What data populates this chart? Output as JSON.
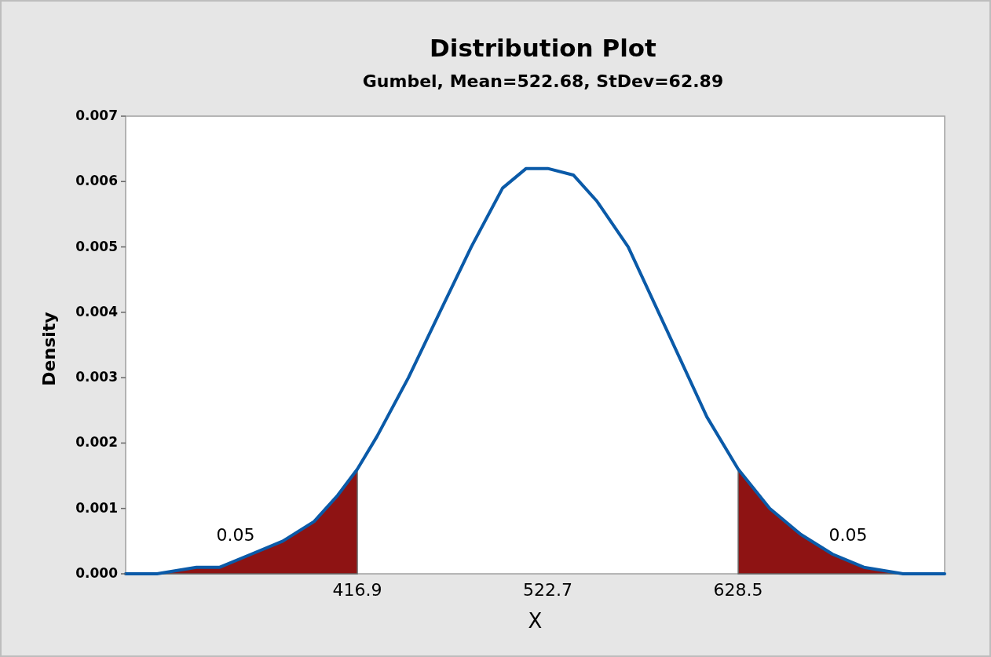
{
  "chart_data": {
    "type": "line",
    "title": "Distribution Plot",
    "subtitle": "Gumbel, Mean=522.68, StDev=62.89",
    "xlabel": "X",
    "ylabel": "Density",
    "xlim": [
      288.2,
      743.2
    ],
    "xticks": [
      416.9,
      522.7,
      628.5
    ],
    "ylim": [
      0,
      0.007
    ],
    "yticks": [
      {
        "value": 0,
        "label": "0.000"
      },
      {
        "value": 0.001,
        "label": "0.001"
      },
      {
        "value": 0.002,
        "label": "0.002"
      },
      {
        "value": 0.003,
        "label": "0.003"
      },
      {
        "value": 0.004,
        "label": "0.004"
      },
      {
        "value": 0.005,
        "label": "0.005"
      },
      {
        "value": 0.006,
        "label": "0.006"
      },
      {
        "value": 0.007,
        "label": "0.007"
      }
    ],
    "grid": false,
    "series": [
      {
        "type": "area",
        "color": "#8e1313",
        "x": [
          288.2,
          301.3,
          305.6,
          327.5,
          340.5,
          358.0,
          375.5,
          392.9,
          406.0,
          416.9
        ],
        "values": [
          0,
          0,
          0,
          0.0001,
          0.0001,
          0.0003,
          0.0005,
          0.0008,
          0.0012,
          0.0016
        ]
      },
      {
        "type": "area",
        "color": "#8e1313",
        "x": [
          628.5,
          646.0,
          663.4,
          680.9,
          698.3,
          720.1,
          743.2
        ],
        "values": [
          0.0016,
          0.001,
          0.0006,
          0.0003,
          0.0001,
          0,
          0
        ]
      },
      {
        "color": "#0a5aa8",
        "x": [
          288.2,
          301.3,
          305.6,
          327.5,
          340.5,
          358.0,
          375.5,
          392.9,
          406.0,
          416.9,
          427.8,
          445.3,
          462.7,
          480.2,
          497.6,
          510.7,
          522.7,
          536.9,
          550.0,
          567.4,
          589.3,
          611.1,
          628.5,
          646.0,
          663.4,
          680.9,
          698.3,
          720.1,
          743.2
        ],
        "values": [
          0,
          0,
          0,
          0.0001,
          0.0001,
          0.0003,
          0.0005,
          0.0008,
          0.0012,
          0.0016,
          0.0021,
          0.003,
          0.004,
          0.005,
          0.0059,
          0.0062,
          0.0062,
          0.0061,
          0.0057,
          0.005,
          0.0037,
          0.0024,
          0.0016,
          0.001,
          0.0006,
          0.0003,
          0.0001,
          0,
          0
        ]
      }
    ],
    "annotations": [
      "0.05",
      "0.05"
    ]
  }
}
